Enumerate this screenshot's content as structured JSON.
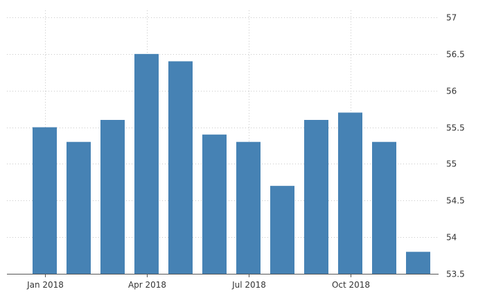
{
  "chart_data": {
    "type": "bar",
    "categories": [
      "Jan 2018",
      "Feb 2018",
      "Mar 2018",
      "Apr 2018",
      "May 2018",
      "Jun 2018",
      "Jul 2018",
      "Aug 2018",
      "Sep 2018",
      "Oct 2018",
      "Nov 2018",
      "Dec 2018"
    ],
    "values": [
      55.5,
      55.3,
      55.6,
      56.5,
      56.4,
      55.4,
      55.3,
      54.7,
      55.6,
      55.7,
      55.3,
      53.8
    ],
    "x_tick_labels": [
      {
        "label": "Jan 2018",
        "category_index": 0
      },
      {
        "label": "Apr 2018",
        "category_index": 3
      },
      {
        "label": "Jul 2018",
        "category_index": 6
      },
      {
        "label": "Oct 2018",
        "category_index": 9
      }
    ],
    "y_ticks": [
      53.5,
      54,
      54.5,
      55,
      55.5,
      56,
      56.5,
      57
    ],
    "ylim": [
      53.5,
      57
    ],
    "title": "",
    "xlabel": "",
    "ylabel": "",
    "grid": true,
    "y_axis_position": "right",
    "bar_color": "#4682b4"
  }
}
